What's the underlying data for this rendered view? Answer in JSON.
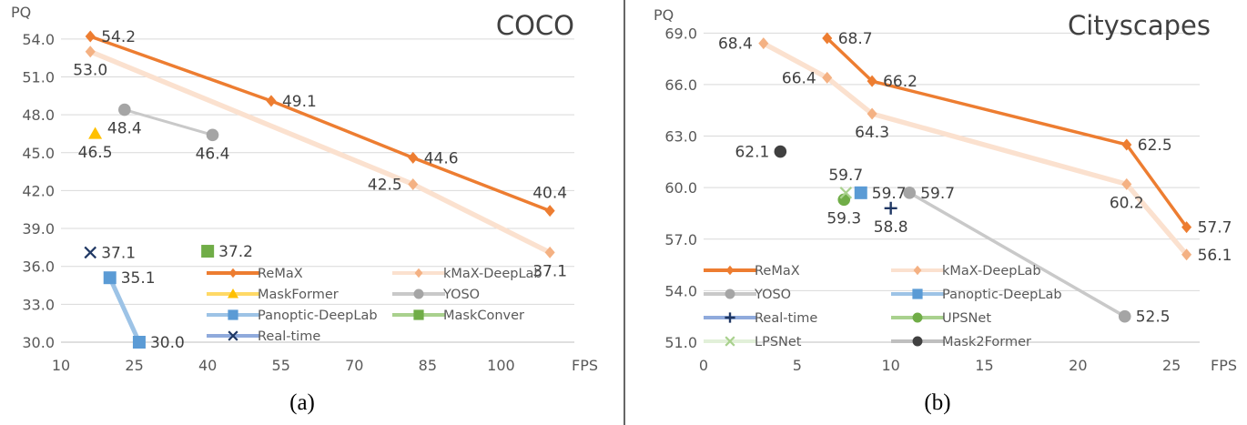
{
  "figure": {
    "captions": [
      "(a)",
      "(b)"
    ]
  },
  "colors": {
    "ReMaX": "#ed7d31",
    "kMaX-DeepLab": "#f4b183",
    "kMaX-DeepLab-line": "#fbe1cf",
    "YOSO": "#a5a5a5",
    "YOSO-line": "#c9c9c9",
    "MaskFormer": "#ffc000",
    "MaskFormer-line": "#ffd966",
    "Panoptic-DeepLab": "#5b9bd5",
    "Panoptic-DeepLab-line": "#9dc3e6",
    "MaskConver": "#70ad47",
    "MaskConver-line": "#a9d18e",
    "Real-time": "#203864",
    "Real-time-line": "#8faadc",
    "UPSNet": "#70ad47",
    "UPSNet-line": "#a9d18e",
    "LPSNet": "#a9d18e",
    "LPSNet-line": "#e2f0d9",
    "Mask2Former": "#404040",
    "Mask2Former-line": "#bfbfbf"
  },
  "chart_data": [
    {
      "type": "line",
      "title": "COCO",
      "ylabel": "PQ",
      "xlabel": "FPS",
      "xlim": [
        10,
        115
      ],
      "ylim": [
        30,
        55.5
      ],
      "xticks": [
        "10",
        "25",
        "40",
        "55",
        "70",
        "85",
        "100"
      ],
      "xtick_values": [
        10,
        25,
        40,
        55,
        70,
        85,
        100
      ],
      "yticks": [
        "30.0",
        "33.0",
        "36.0",
        "39.0",
        "42.0",
        "45.0",
        "48.0",
        "51.0",
        "54.0"
      ],
      "ytick_values": [
        30,
        33,
        36,
        39,
        42,
        45,
        48,
        51,
        54
      ],
      "grid": true,
      "series": [
        {
          "name": "ReMaX",
          "marker": "diamond",
          "x": [
            16,
            53,
            82,
            110
          ],
          "y": [
            54.2,
            49.1,
            44.6,
            40.4
          ],
          "labels": [
            "54.2",
            "49.1",
            "44.6",
            "40.4"
          ],
          "label_pos": [
            "right",
            "right",
            "right",
            "above"
          ]
        },
        {
          "name": "kMaX-DeepLab",
          "marker": "diamond",
          "x": [
            16,
            82,
            110
          ],
          "y": [
            53.0,
            42.5,
            37.1
          ],
          "labels": [
            "53.0",
            "42.5",
            "37.1"
          ],
          "label_pos": [
            "below",
            "left",
            "below"
          ]
        },
        {
          "name": "MaskFormer",
          "marker": "triangle",
          "x": [
            17
          ],
          "y": [
            46.5
          ],
          "labels": [
            "46.5"
          ],
          "label_pos": [
            "below"
          ]
        },
        {
          "name": "YOSO",
          "marker": "circle",
          "x": [
            23,
            41
          ],
          "y": [
            48.4,
            46.4
          ],
          "labels": [
            "48.4",
            "46.4"
          ],
          "label_pos": [
            "below",
            "below"
          ]
        },
        {
          "name": "Panoptic-DeepLab",
          "marker": "square",
          "x": [
            20,
            26
          ],
          "y": [
            35.1,
            30.0
          ],
          "labels": [
            "35.1",
            "30.0"
          ],
          "label_pos": [
            "right",
            "right"
          ]
        },
        {
          "name": "MaskConver",
          "marker": "square",
          "x": [
            40
          ],
          "y": [
            37.2
          ],
          "labels": [
            "37.2"
          ],
          "label_pos": [
            "right"
          ]
        },
        {
          "name": "Real-time",
          "marker": "x",
          "x": [
            16
          ],
          "y": [
            37.1
          ],
          "labels": [
            "37.1"
          ],
          "label_pos": [
            "right"
          ]
        }
      ],
      "legend": [
        "ReMaX",
        "kMaX-DeepLab",
        "MaskFormer",
        "YOSO",
        "Panoptic-DeepLab",
        "MaskConver",
        "Real-time"
      ]
    },
    {
      "type": "line",
      "title": "Cityscapes",
      "ylabel": "PQ",
      "xlabel": "FPS",
      "xlim": [
        0,
        26.5
      ],
      "ylim": [
        51,
        69.6
      ],
      "xticks": [
        "0",
        "5",
        "10",
        "15",
        "20",
        "25"
      ],
      "xtick_values": [
        0,
        5,
        10,
        15,
        20,
        25
      ],
      "yticks": [
        "51.0",
        "54.0",
        "57.0",
        "60.0",
        "63.0",
        "66.0",
        "69.0"
      ],
      "ytick_values": [
        51,
        54,
        57,
        60,
        63,
        66,
        69
      ],
      "grid": true,
      "series": [
        {
          "name": "ReMaX",
          "marker": "diamond",
          "x": [
            6.6,
            9.0,
            22.6,
            25.8
          ],
          "y": [
            68.7,
            66.2,
            62.5,
            57.7
          ],
          "labels": [
            "68.7",
            "66.2",
            "62.5",
            "57.7"
          ],
          "label_pos": [
            "right",
            "right",
            "right",
            "right"
          ]
        },
        {
          "name": "kMaX-DeepLab",
          "marker": "diamond",
          "x": [
            3.2,
            6.6,
            9.0,
            22.6,
            25.8
          ],
          "y": [
            68.4,
            66.4,
            64.3,
            60.2,
            56.1
          ],
          "labels": [
            "68.4",
            "66.4",
            "64.3",
            "60.2",
            "56.1"
          ],
          "label_pos": [
            "left",
            "left",
            "below",
            "below",
            "right"
          ]
        },
        {
          "name": "YOSO",
          "marker": "circle",
          "x": [
            11.0,
            22.5
          ],
          "y": [
            59.7,
            52.5
          ],
          "labels": [
            "59.7",
            "52.5"
          ],
          "label_pos": [
            "right",
            "right"
          ]
        },
        {
          "name": "Panoptic-DeepLab",
          "marker": "square",
          "x": [
            8.4
          ],
          "y": [
            59.7
          ],
          "labels": [
            "59.7"
          ],
          "label_pos": [
            "right"
          ]
        },
        {
          "name": "Real-time",
          "marker": "plus",
          "x": [
            10.0
          ],
          "y": [
            58.8
          ],
          "labels": [
            "58.8"
          ],
          "label_pos": [
            "below"
          ]
        },
        {
          "name": "UPSNet",
          "marker": "circle",
          "x": [
            7.5
          ],
          "y": [
            59.3
          ],
          "labels": [
            "59.3"
          ],
          "label_pos": [
            "below"
          ]
        },
        {
          "name": "LPSNet",
          "marker": "x",
          "x": [
            7.6
          ],
          "y": [
            59.7
          ],
          "labels": [
            "59.7"
          ],
          "label_pos": [
            "above"
          ]
        },
        {
          "name": "Mask2Former",
          "marker": "circle",
          "x": [
            4.1
          ],
          "y": [
            62.1
          ],
          "labels": [
            "62.1"
          ],
          "label_pos": [
            "left"
          ]
        }
      ],
      "legend": [
        "ReMaX",
        "kMaX-DeepLab",
        "YOSO",
        "Panoptic-DeepLab",
        "Real-time",
        "UPSNet",
        "LPSNet",
        "Mask2Former"
      ]
    }
  ]
}
